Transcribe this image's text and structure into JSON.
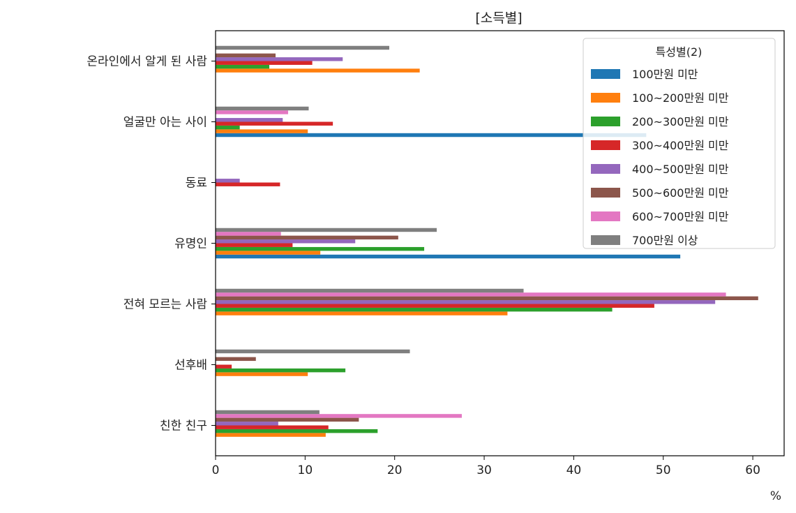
{
  "chart_data": {
    "type": "bar",
    "orientation": "horizontal",
    "title": "[소득별]",
    "xlabel": "%",
    "ylabel": "",
    "xlim": [
      0,
      63.5
    ],
    "xticks": [
      0,
      10,
      20,
      30,
      40,
      50,
      60
    ],
    "grid": false,
    "legend_title": "특성별(2)",
    "legend_position": "top-right",
    "categories": [
      "친한 친구",
      "선후배",
      "전혀 모르는 사람",
      "유명인",
      "동료",
      "얼굴만 아는 사이",
      "온라인에서 알게 된 사람"
    ],
    "series": [
      {
        "name": "100만원 미만",
        "color": "#1f77b4",
        "values": [
          0,
          0,
          0,
          51.9,
          0,
          48.1,
          0
        ]
      },
      {
        "name": "100~200만원 미만",
        "color": "#ff7f0e",
        "values": [
          12.3,
          10.3,
          32.6,
          11.7,
          0,
          10.3,
          22.8
        ]
      },
      {
        "name": "200~300만원 미만",
        "color": "#2ca02c",
        "values": [
          18.1,
          14.5,
          44.3,
          23.3,
          0,
          2.7,
          6.0
        ]
      },
      {
        "name": "300~400만원 미만",
        "color": "#d62728",
        "values": [
          12.6,
          1.8,
          49.0,
          8.6,
          7.2,
          13.1,
          10.8
        ]
      },
      {
        "name": "400~500만원 미만",
        "color": "#9467bd",
        "values": [
          7.0,
          0,
          55.8,
          15.6,
          2.7,
          7.5,
          14.2
        ]
      },
      {
        "name": "500~600만원 미만",
        "color": "#8c564b",
        "values": [
          16.0,
          4.5,
          60.6,
          20.4,
          0,
          0,
          6.7
        ]
      },
      {
        "name": "600~700만원 미만",
        "color": "#e377c2",
        "values": [
          27.5,
          0,
          57.0,
          7.3,
          0,
          8.1,
          0
        ]
      },
      {
        "name": "700만원 이상",
        "color": "#7f7f7f",
        "values": [
          11.6,
          21.7,
          34.4,
          24.7,
          0,
          10.4,
          19.4
        ]
      }
    ]
  }
}
